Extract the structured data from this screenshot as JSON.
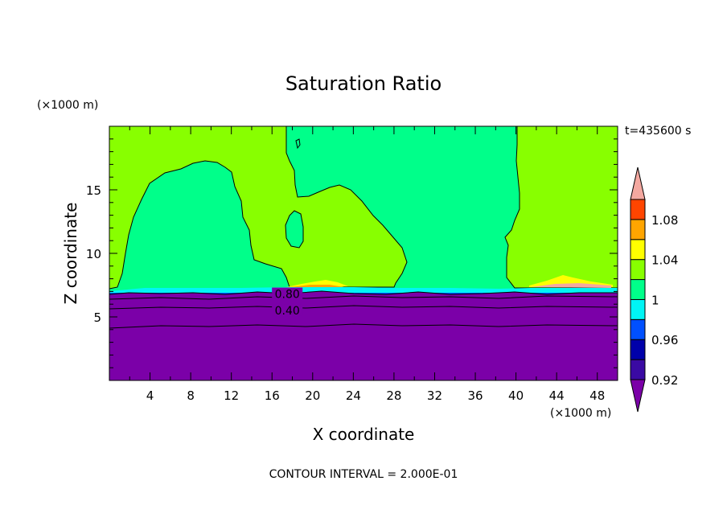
{
  "chart_data": {
    "type": "heatmap",
    "title": "Saturation Ratio",
    "xlabel": "X coordinate",
    "ylabel": "Z coordinate",
    "x_unit": "(×1000 m)",
    "z_unit": "(×1000 m)",
    "time_label": "t=435600 s",
    "footer": "CONTOUR INTERVAL = 2.000E-01",
    "xlim": [
      0,
      50
    ],
    "ylim": [
      0,
      20
    ],
    "x_ticks": [
      4,
      8,
      12,
      16,
      20,
      24,
      28,
      32,
      36,
      40,
      44,
      48
    ],
    "y_ticks": [
      5,
      10,
      15
    ],
    "colorbar": {
      "labels": [
        "0.92",
        "0.96",
        "1",
        "1.04",
        "1.08"
      ],
      "levels": [
        0.92,
        0.94,
        0.96,
        0.98,
        1.0,
        1.02,
        1.04,
        1.06,
        1.08,
        1.1
      ],
      "colors": {
        "below": "#7b00a8",
        "b1": "#3a0aa3",
        "b2": "#0000aa",
        "b3": "#0050ff",
        "b4": "#00f5f5",
        "b5": "#00ff8a",
        "b6": "#88ff00",
        "b7": "#ffff00",
        "b8": "#ffa500",
        "b9": "#ff4500",
        "b10": "#ff2a2a",
        "above": "#f4a8a0"
      }
    },
    "contour_labels": [
      {
        "text": "0.80",
        "x": 17.5,
        "z": 6.8
      },
      {
        "text": "0.40",
        "x": 17.5,
        "z": 5.5
      }
    ]
  }
}
